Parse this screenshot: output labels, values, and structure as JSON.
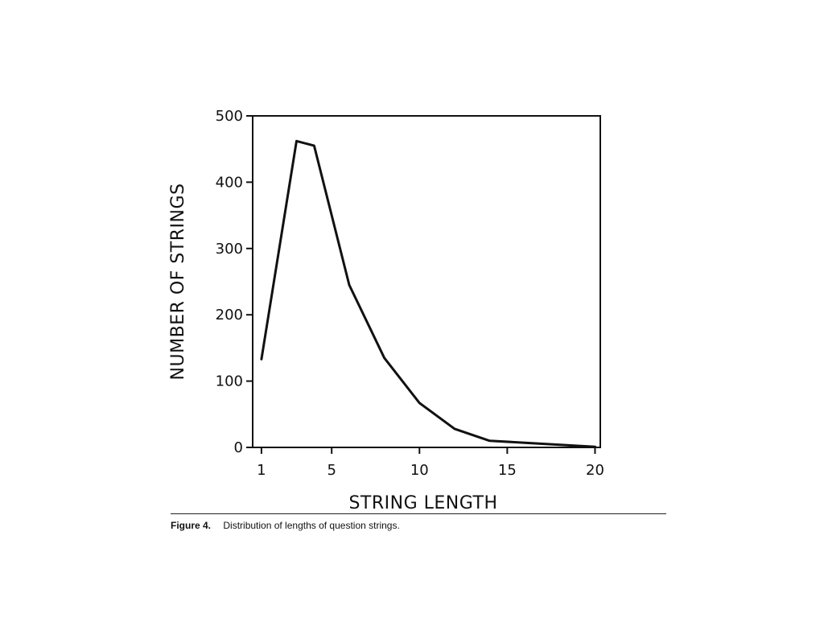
{
  "chart_data": {
    "type": "line",
    "title": "",
    "xlabel": "STRING LENGTH",
    "ylabel": "NUMBER OF STRINGS",
    "xlim": [
      0.5,
      20.3
    ],
    "ylim": [
      0,
      500
    ],
    "x_ticks": [
      1,
      5,
      10,
      15,
      20
    ],
    "y_ticks": [
      0,
      100,
      200,
      300,
      400,
      500
    ],
    "grid": false,
    "legend": "none",
    "line_color": "#111111",
    "series": [
      {
        "x": [
          1,
          3,
          4,
          6,
          8,
          10,
          12,
          14,
          16,
          18,
          20
        ],
        "y": [
          133,
          462,
          455,
          245,
          135,
          67,
          28,
          10,
          7,
          4,
          1
        ]
      }
    ]
  },
  "caption": {
    "label": "Figure 4.",
    "text": "Distribution of lengths of question strings."
  }
}
